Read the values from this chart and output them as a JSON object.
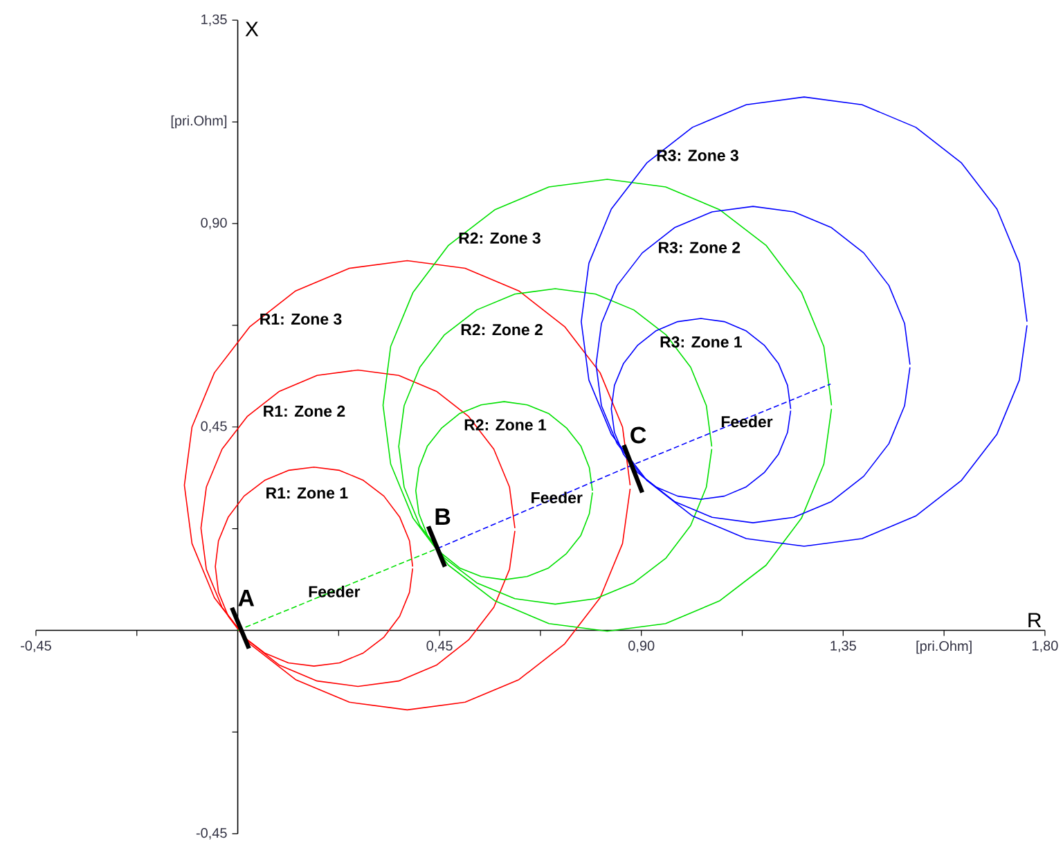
{
  "chart_data": {
    "type": "line",
    "xlabel": "R",
    "ylabel": "X",
    "xlim": [
      -0.45,
      1.8
    ],
    "ylim": [
      -0.45,
      1.35
    ],
    "xticks": [
      {
        "value": -0.45,
        "label": "-0,45"
      },
      {
        "value": -0.225,
        "label": null
      },
      {
        "value": 0.225,
        "label": null
      },
      {
        "value": 0.45,
        "label": "0,45"
      },
      {
        "value": 0.675,
        "label": null
      },
      {
        "value": 0.9,
        "label": "0,90"
      },
      {
        "value": 1.125,
        "label": null
      },
      {
        "value": 1.35,
        "label": "1,35"
      },
      {
        "value": 1.575,
        "label": "[pri.Ohm]"
      },
      {
        "value": 1.8,
        "label": "1,80"
      }
    ],
    "yticks": [
      {
        "value": -0.45,
        "label": "-0,45"
      },
      {
        "value": -0.225,
        "label": null
      },
      {
        "value": 0.225,
        "label": null
      },
      {
        "value": 0.45,
        "label": "0,45"
      },
      {
        "value": 0.675,
        "label": null
      },
      {
        "value": 0.9,
        "label": "0,90"
      },
      {
        "value": 1.125,
        "label": "[pri.Ohm]"
      },
      {
        "value": 1.35,
        "label": "1,35"
      }
    ],
    "series": [
      {
        "name": "R1: Zone 1",
        "color": "#ff0000",
        "x": [
          0.39,
          0.383,
          0.361,
          0.326,
          0.28,
          0.227,
          0.17,
          0.113,
          0.06,
          0.014,
          -0.021,
          -0.043,
          -0.05,
          -0.043,
          -0.021,
          0.014,
          0.06,
          0.113,
          0.17,
          0.227,
          0.28,
          0.326,
          0.361,
          0.383,
          0.39
        ],
        "values": [
          0.141,
          0.198,
          0.251,
          0.297,
          0.332,
          0.354,
          0.361,
          0.354,
          0.332,
          0.297,
          0.251,
          0.198,
          0.141,
          0.084,
          0.031,
          -0.015,
          -0.05,
          -0.072,
          -0.079,
          -0.072,
          -0.05,
          -0.015,
          0.031,
          0.084,
          0.137
        ]
      },
      {
        "name": "R1: Zone 2",
        "color": "#ff0000",
        "x": [
          0.618,
          0.606,
          0.571,
          0.515,
          0.443,
          0.359,
          0.268,
          0.177,
          0.093,
          0.021,
          -0.035,
          -0.07,
          -0.082,
          -0.07,
          -0.035,
          0.021,
          0.093,
          0.177,
          0.268,
          0.359,
          0.443,
          0.515,
          0.571,
          0.606,
          0.618
        ],
        "values": [
          0.226,
          0.317,
          0.401,
          0.473,
          0.529,
          0.564,
          0.576,
          0.564,
          0.529,
          0.473,
          0.401,
          0.317,
          0.226,
          0.135,
          0.051,
          -0.021,
          -0.077,
          -0.112,
          -0.124,
          -0.112,
          -0.077,
          -0.021,
          0.051,
          0.135,
          0.22
        ]
      },
      {
        "name": "R1: Zone 3",
        "color": "#ff0000",
        "x": [
          0.875,
          0.858,
          0.808,
          0.729,
          0.627,
          0.507,
          0.378,
          0.249,
          0.129,
          0.027,
          -0.052,
          -0.102,
          -0.119,
          -0.102,
          -0.052,
          0.027,
          0.129,
          0.249,
          0.378,
          0.507,
          0.627,
          0.729,
          0.808,
          0.858,
          0.875
        ],
        "values": [
          0.321,
          0.45,
          0.57,
          0.672,
          0.751,
          0.801,
          0.818,
          0.801,
          0.751,
          0.672,
          0.57,
          0.45,
          0.321,
          0.192,
          0.072,
          -0.03,
          -0.109,
          -0.159,
          -0.176,
          -0.159,
          -0.109,
          -0.03,
          0.072,
          0.192,
          0.313
        ]
      },
      {
        "name": "R2: Zone 1",
        "color": "#00e000",
        "x": [
          0.791,
          0.784,
          0.765,
          0.733,
          0.693,
          0.645,
          0.594,
          0.543,
          0.495,
          0.455,
          0.423,
          0.404,
          0.397,
          0.404,
          0.423,
          0.455,
          0.495,
          0.543,
          0.594,
          0.645,
          0.693,
          0.733,
          0.765,
          0.784,
          0.791
        ],
        "values": [
          0.309,
          0.36,
          0.408,
          0.448,
          0.48,
          0.499,
          0.506,
          0.499,
          0.48,
          0.448,
          0.408,
          0.36,
          0.309,
          0.258,
          0.21,
          0.17,
          0.138,
          0.119,
          0.112,
          0.119,
          0.138,
          0.17,
          0.21,
          0.258,
          0.305
        ]
      },
      {
        "name": "R2: Zone 2",
        "color": "#00e000",
        "x": [
          1.057,
          1.045,
          1.01,
          0.955,
          0.883,
          0.798,
          0.708,
          0.618,
          0.533,
          0.461,
          0.406,
          0.371,
          0.359,
          0.371,
          0.406,
          0.461,
          0.533,
          0.618,
          0.708,
          0.798,
          0.883,
          0.955,
          1.01,
          1.045,
          1.057
        ],
        "values": [
          0.407,
          0.497,
          0.582,
          0.654,
          0.709,
          0.744,
          0.756,
          0.744,
          0.709,
          0.654,
          0.582,
          0.497,
          0.407,
          0.317,
          0.232,
          0.16,
          0.105,
          0.07,
          0.058,
          0.07,
          0.105,
          0.16,
          0.232,
          0.317,
          0.401
        ]
      },
      {
        "name": "R2: Zone 3",
        "color": "#00e000",
        "x": [
          1.324,
          1.307,
          1.257,
          1.178,
          1.074,
          0.954,
          0.824,
          0.694,
          0.574,
          0.47,
          0.391,
          0.341,
          0.324,
          0.341,
          0.391,
          0.47,
          0.574,
          0.694,
          0.824,
          0.954,
          1.074,
          1.178,
          1.257,
          1.307,
          1.324
        ],
        "values": [
          0.498,
          0.628,
          0.748,
          0.852,
          0.931,
          0.981,
          0.998,
          0.981,
          0.931,
          0.852,
          0.748,
          0.628,
          0.498,
          0.368,
          0.248,
          0.144,
          0.065,
          0.015,
          -0.002,
          0.015,
          0.065,
          0.144,
          0.248,
          0.368,
          0.49
        ]
      },
      {
        "name": "R3: Zone 1",
        "color": "#0000ff",
        "x": [
          1.233,
          1.226,
          1.206,
          1.174,
          1.133,
          1.085,
          1.033,
          0.981,
          0.933,
          0.892,
          0.86,
          0.84,
          0.833,
          0.84,
          0.86,
          0.892,
          0.933,
          0.981,
          1.033,
          1.085,
          1.133,
          1.174,
          1.206,
          1.226,
          1.233
        ],
        "values": [
          0.49,
          0.542,
          0.59,
          0.631,
          0.663,
          0.683,
          0.69,
          0.683,
          0.663,
          0.631,
          0.59,
          0.542,
          0.49,
          0.438,
          0.39,
          0.349,
          0.317,
          0.297,
          0.29,
          0.297,
          0.317,
          0.349,
          0.39,
          0.438,
          0.486
        ]
      },
      {
        "name": "R3: Zone 2",
        "color": "#0000ff",
        "x": [
          1.499,
          1.487,
          1.452,
          1.396,
          1.324,
          1.24,
          1.149,
          1.058,
          0.974,
          0.902,
          0.846,
          0.811,
          0.799,
          0.811,
          0.846,
          0.902,
          0.974,
          1.058,
          1.149,
          1.24,
          1.324,
          1.396,
          1.452,
          1.487,
          1.499
        ],
        "values": [
          0.588,
          0.679,
          0.763,
          0.835,
          0.891,
          0.926,
          0.938,
          0.926,
          0.891,
          0.835,
          0.763,
          0.679,
          0.588,
          0.497,
          0.413,
          0.341,
          0.285,
          0.25,
          0.238,
          0.25,
          0.285,
          0.341,
          0.413,
          0.497,
          0.582
        ]
      },
      {
        "name": "R3: Zone 3",
        "color": "#0000ff",
        "x": [
          1.76,
          1.743,
          1.693,
          1.614,
          1.512,
          1.392,
          1.263,
          1.134,
          1.014,
          0.912,
          0.833,
          0.783,
          0.766,
          0.783,
          0.833,
          0.912,
          1.014,
          1.134,
          1.263,
          1.392,
          1.512,
          1.614,
          1.693,
          1.743,
          1.76
        ],
        "values": [
          0.683,
          0.812,
          0.932,
          1.034,
          1.113,
          1.163,
          1.18,
          1.163,
          1.113,
          1.034,
          0.932,
          0.812,
          0.683,
          0.554,
          0.434,
          0.332,
          0.253,
          0.203,
          0.186,
          0.203,
          0.253,
          0.332,
          0.434,
          0.554,
          0.675
        ]
      },
      {
        "color": "#00e000",
        "line_style": "dashed",
        "x": [
          0.0,
          0.445
        ],
        "values": [
          0.0,
          0.181
        ]
      },
      {
        "color": "#0000ff",
        "line_style": "dashed",
        "x": [
          0.445,
          0.878,
          1.322
        ],
        "values": [
          0.181,
          0.365,
          0.545
        ]
      },
      {
        "color": "#000000",
        "x": [
          -0.013,
          0.025
        ],
        "values": [
          0.05,
          -0.04
        ],
        "value_labels": [
          "A",
          null
        ]
      },
      {
        "color": "#000000",
        "x": [
          0.425,
          0.462
        ],
        "values": [
          0.23,
          0.141
        ],
        "value_labels": [
          "B",
          null
        ]
      },
      {
        "color": "#000000",
        "x": [
          0.861,
          0.902
        ],
        "values": [
          0.41,
          0.305
        ],
        "value_labels": [
          "C",
          null
        ]
      }
    ],
    "annotations": [
      {
        "text": "Feeder",
        "x": 0.215,
        "y": 0.086
      },
      {
        "text": "Feeder",
        "x": 0.711,
        "y": 0.294
      },
      {
        "text": "Feeder",
        "x": 1.135,
        "y": 0.462
      }
    ]
  }
}
